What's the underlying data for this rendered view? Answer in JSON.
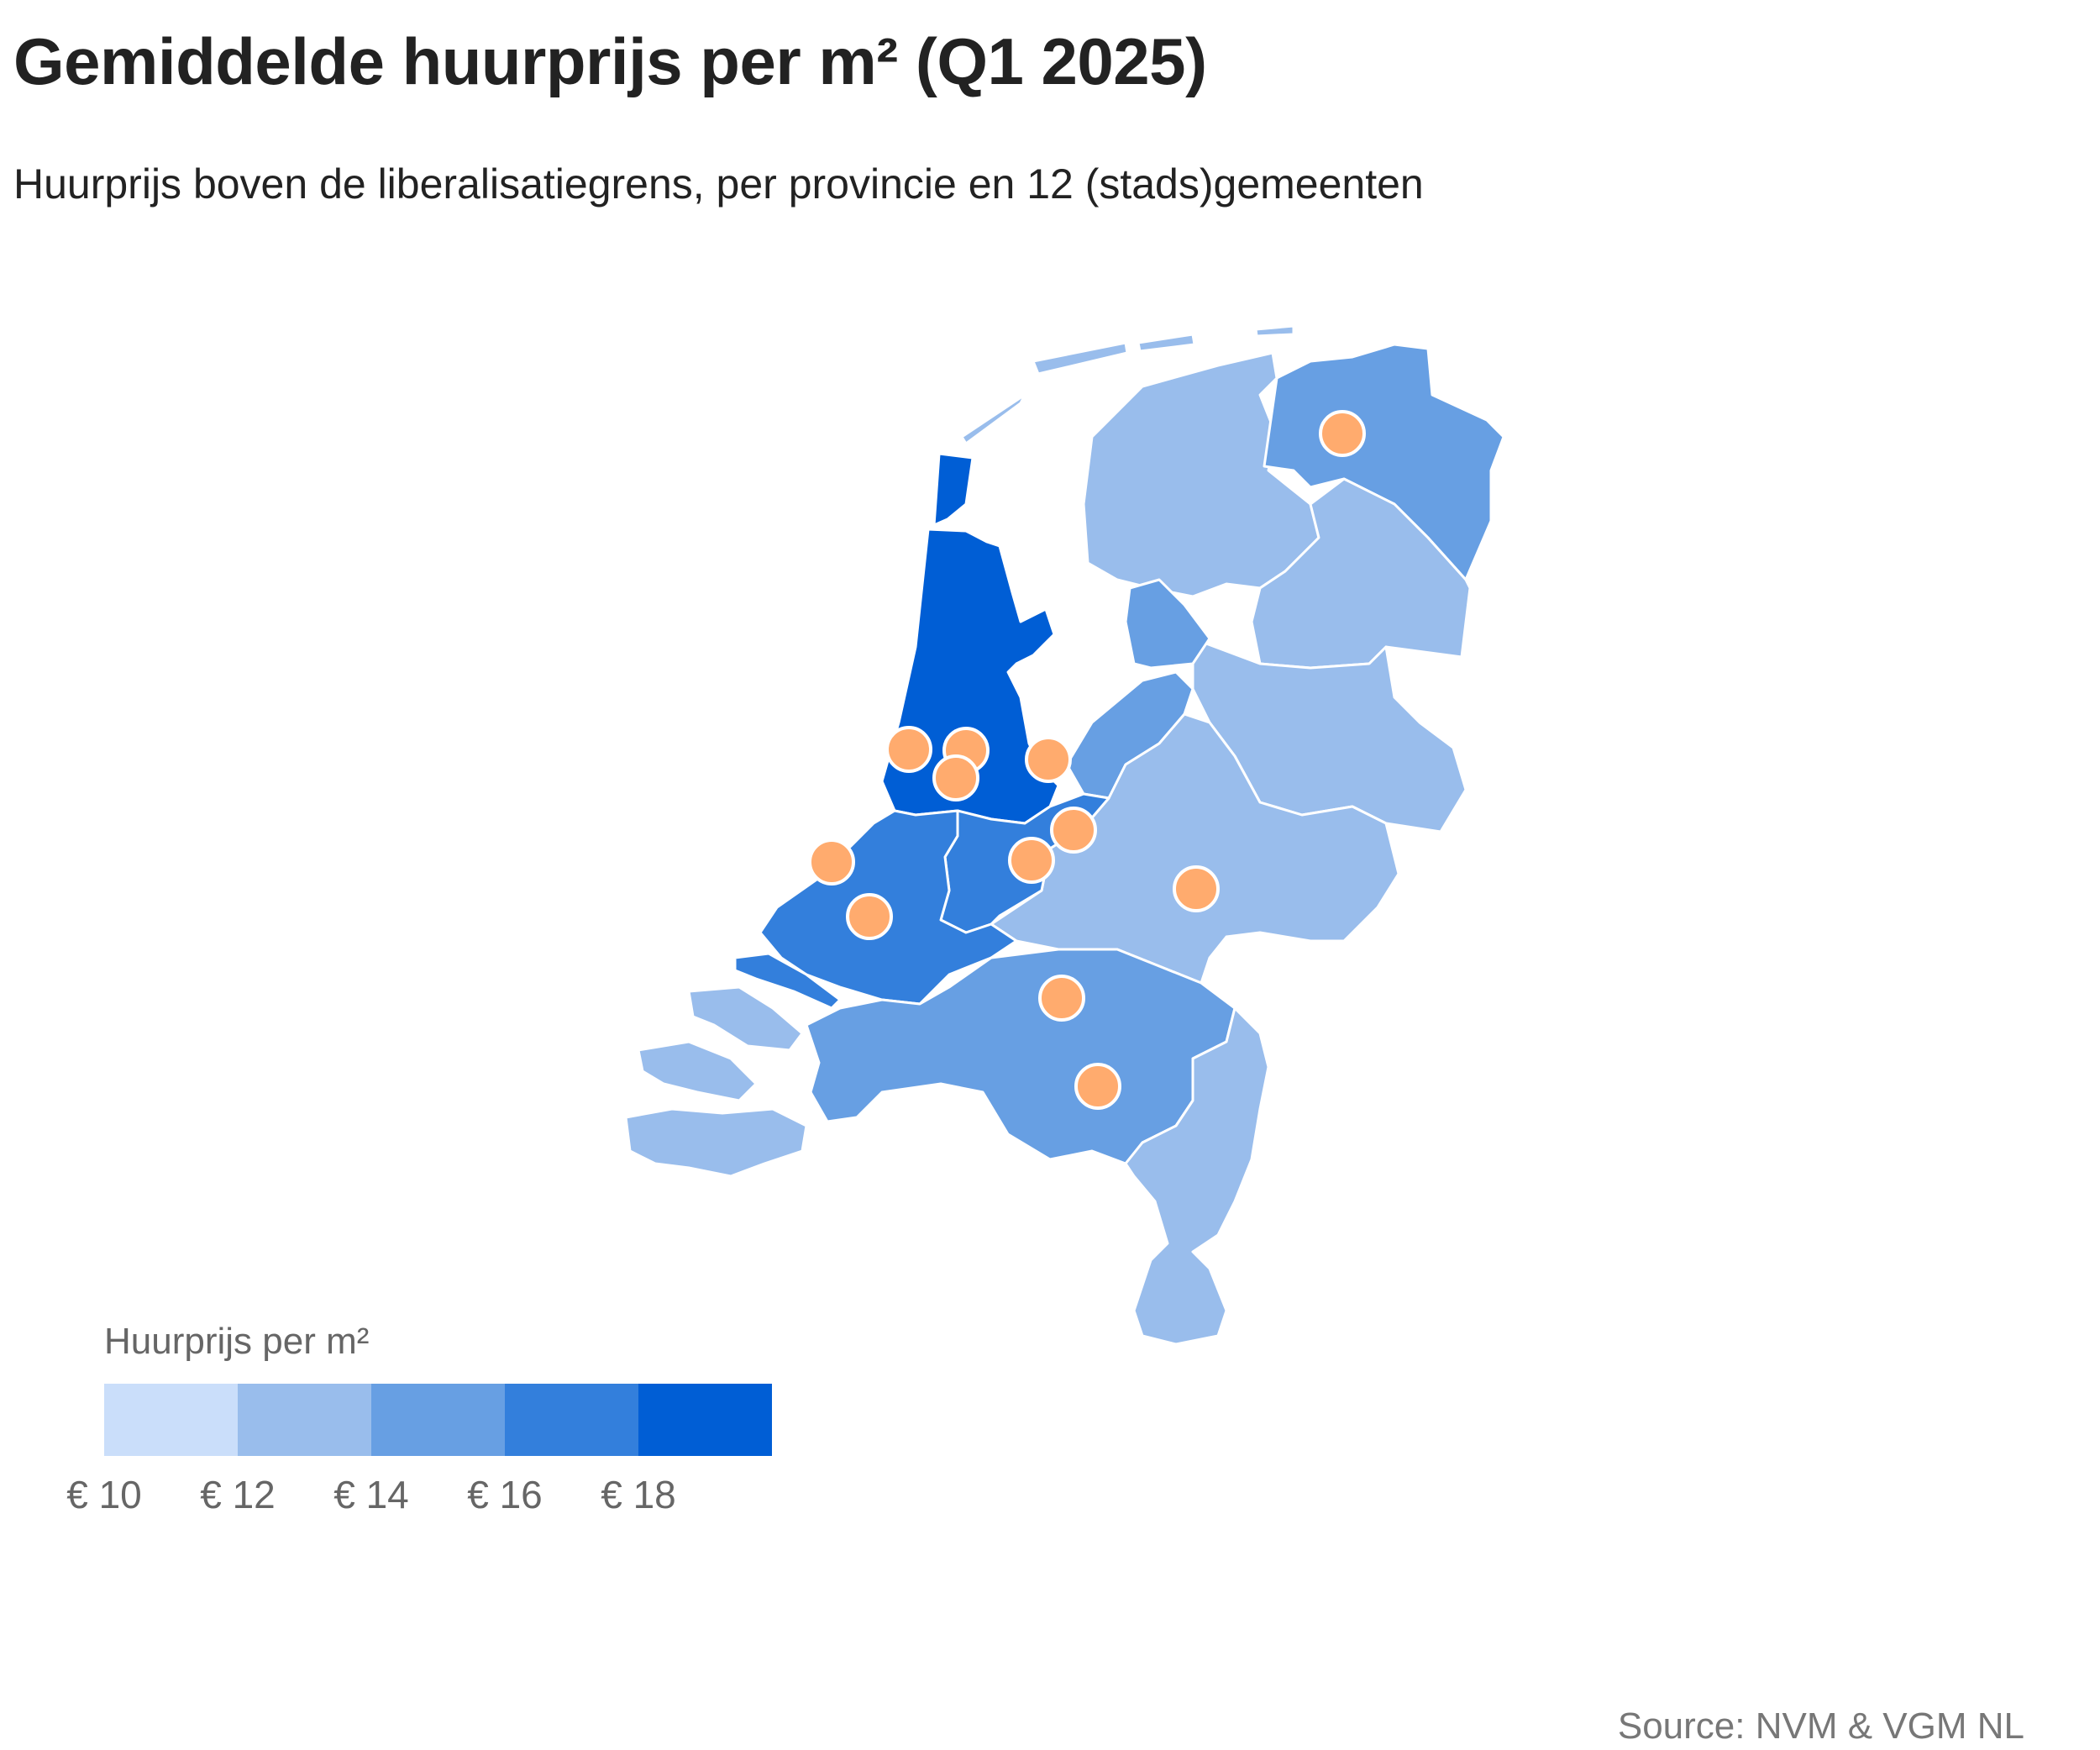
{
  "title": "Gemiddelde huurprijs per m² (Q1 2025)",
  "subtitle": "Huurprijs boven de liberalisatiegrens, per provincie en 12 (stads)gemeenten",
  "legend": {
    "title": "Huurprijs per m²",
    "ticks": [
      "€ 10",
      "€ 12",
      "€ 14",
      "€ 16",
      "€ 18"
    ],
    "colors": [
      "#cadefa",
      "#99bdec",
      "#679fe3",
      "#337fdc",
      "#005ed5"
    ]
  },
  "source": "Source: NVM & VGM NL",
  "colors": {
    "marker_fill": "#ffab6e",
    "marker_stroke": "#ffffff",
    "border": "#ffffff"
  },
  "map_data": {
    "provinces": [
      {
        "id": "groningen",
        "class": "€14–16"
      },
      {
        "id": "friesland",
        "class": "€12–14"
      },
      {
        "id": "drenthe",
        "class": "€12–14"
      },
      {
        "id": "overijssel",
        "class": "€12–14"
      },
      {
        "id": "flevoland",
        "class": "€14–16"
      },
      {
        "id": "gelderland",
        "class": "€12–14"
      },
      {
        "id": "utrecht",
        "class": "€16–18"
      },
      {
        "id": "noord-holland",
        "class": "€18+"
      },
      {
        "id": "zuid-holland",
        "class": "€16–18"
      },
      {
        "id": "zeeland",
        "class": "€12–14"
      },
      {
        "id": "noord-brabant",
        "class": "€14–16"
      },
      {
        "id": "limburg",
        "class": "€12–14"
      }
    ],
    "city_markers": 12
  }
}
